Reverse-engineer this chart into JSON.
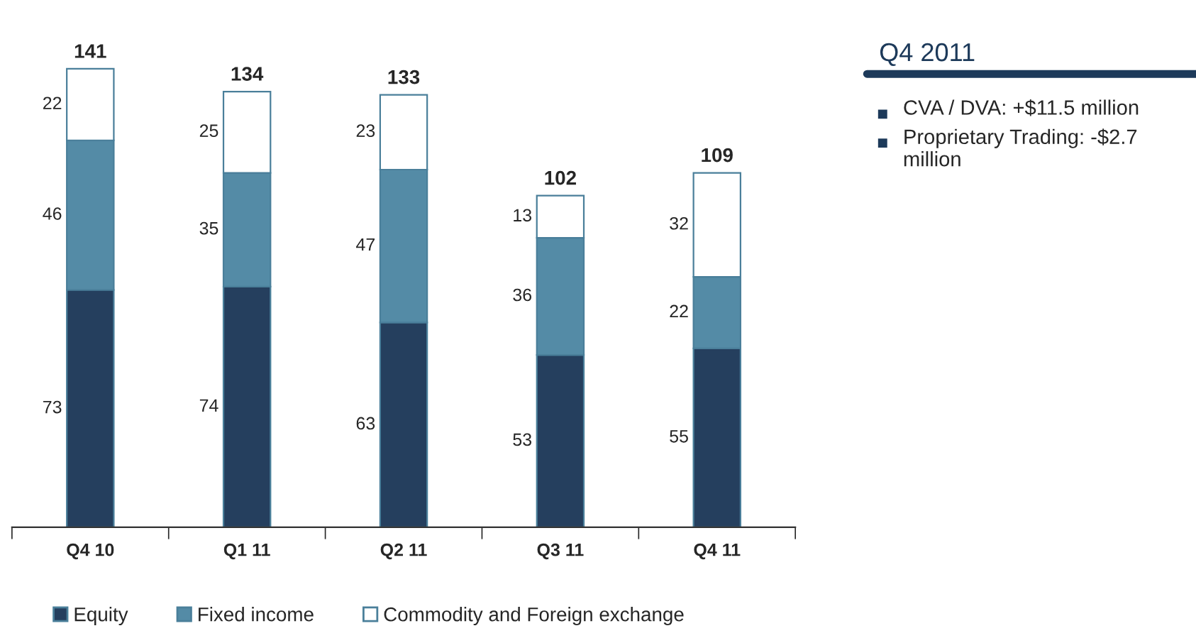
{
  "chart_data": {
    "type": "bar",
    "stacked": true,
    "categories": [
      "Q4 10",
      "Q1 11",
      "Q2 11",
      "Q3 11",
      "Q4 11"
    ],
    "series": [
      {
        "name": "Equity",
        "color": "#253f5e",
        "values": [
          73,
          74,
          63,
          53,
          55
        ]
      },
      {
        "name": "Fixed income",
        "color": "#548ba6",
        "values": [
          46,
          35,
          47,
          36,
          22
        ]
      },
      {
        "name": "Commodity and Foreign exchange",
        "color": "#ffffff",
        "values": [
          22,
          25,
          23,
          13,
          32
        ]
      }
    ],
    "data_labels": true,
    "totals": [
      "141",
      "134",
      "133",
      "102",
      "109"
    ],
    "annotations": [
      "Q4 2011",
      "CVA / DVA: +$11.5 million",
      "Proprietary Trading: -$2.7 million"
    ],
    "legend": "bottom",
    "grid": false,
    "tick_labels": "x"
  }
}
